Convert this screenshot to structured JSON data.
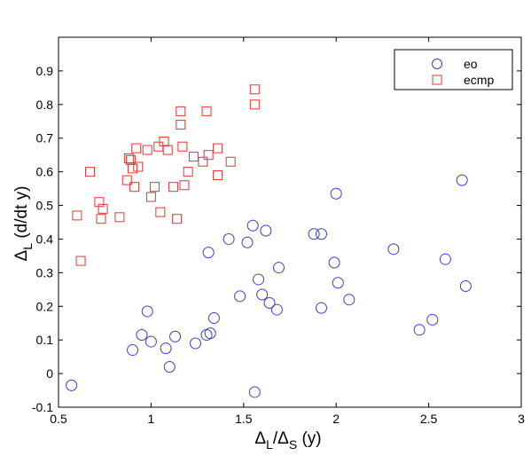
{
  "chart_data": {
    "type": "scatter",
    "title": "",
    "xlabel": {
      "main": "Δ",
      "sub1": "L",
      "mid": "/Δ",
      "sub2": "S",
      "unit": " (y)"
    },
    "ylabel": {
      "main": "Δ",
      "sub": "L",
      "unit": " (d/dt y)"
    },
    "xlim": [
      0.5,
      3
    ],
    "ylim": [
      -0.1,
      1.0
    ],
    "xticks": [
      0.5,
      1,
      1.5,
      2,
      2.5,
      3
    ],
    "xtick_labels": [
      "0.5",
      "1",
      "1.5",
      "2",
      "2.5",
      "3"
    ],
    "yticks": [
      -0.1,
      0,
      0.1,
      0.2,
      0.3,
      0.4,
      0.5,
      0.6,
      0.7,
      0.8,
      0.9
    ],
    "ytick_labels": [
      "-0.1",
      "0",
      "0.1",
      "0.2",
      "0.3",
      "0.4",
      "0.5",
      "0.6",
      "0.7",
      "0.8",
      "0.9"
    ],
    "grid": false,
    "legend_position": "top-right",
    "series": [
      {
        "name": "eo",
        "marker": "circle",
        "color": "#3b3bd8",
        "points": [
          [
            0.57,
            -0.035
          ],
          [
            0.9,
            0.07
          ],
          [
            0.95,
            0.115
          ],
          [
            0.98,
            0.185
          ],
          [
            1.0,
            0.095
          ],
          [
            1.08,
            0.075
          ],
          [
            1.1,
            0.02
          ],
          [
            1.13,
            0.11
          ],
          [
            1.24,
            0.09
          ],
          [
            1.3,
            0.115
          ],
          [
            1.32,
            0.12
          ],
          [
            1.31,
            0.36
          ],
          [
            1.34,
            0.165
          ],
          [
            1.42,
            0.4
          ],
          [
            1.48,
            0.23
          ],
          [
            1.52,
            0.39
          ],
          [
            1.55,
            0.44
          ],
          [
            1.56,
            -0.055
          ],
          [
            1.58,
            0.28
          ],
          [
            1.6,
            0.235
          ],
          [
            1.62,
            0.425
          ],
          [
            1.64,
            0.21
          ],
          [
            1.68,
            0.19
          ],
          [
            1.69,
            0.315
          ],
          [
            1.88,
            0.415
          ],
          [
            1.92,
            0.415
          ],
          [
            1.92,
            0.195
          ],
          [
            1.99,
            0.33
          ],
          [
            2.0,
            0.535
          ],
          [
            2.01,
            0.27
          ],
          [
            2.07,
            0.22
          ],
          [
            2.31,
            0.37
          ],
          [
            2.45,
            0.13
          ],
          [
            2.52,
            0.16
          ],
          [
            2.59,
            0.34
          ],
          [
            2.68,
            0.575
          ],
          [
            2.7,
            0.26
          ]
        ]
      },
      {
        "name": "ecmp",
        "marker": "square",
        "color": "#e83434",
        "points": [
          [
            0.6,
            0.47
          ],
          [
            0.62,
            0.335
          ],
          [
            0.67,
            0.6
          ],
          [
            0.72,
            0.51
          ],
          [
            0.73,
            0.46
          ],
          [
            0.74,
            0.49
          ],
          [
            0.83,
            0.465
          ],
          [
            0.87,
            0.575
          ],
          [
            0.88,
            0.64
          ],
          [
            0.89,
            0.635
          ],
          [
            0.9,
            0.61
          ],
          [
            0.91,
            0.555
          ],
          [
            0.92,
            0.67
          ],
          [
            0.93,
            0.615
          ],
          [
            0.98,
            0.665
          ],
          [
            1.0,
            0.525
          ],
          [
            1.02,
            0.555
          ],
          [
            1.04,
            0.675
          ],
          [
            1.05,
            0.48
          ],
          [
            1.07,
            0.69
          ],
          [
            1.09,
            0.665
          ],
          [
            1.12,
            0.555
          ],
          [
            1.14,
            0.46
          ],
          [
            1.16,
            0.74
          ],
          [
            1.16,
            0.78
          ],
          [
            1.17,
            0.675
          ],
          [
            1.18,
            0.56
          ],
          [
            1.2,
            0.6
          ],
          [
            1.23,
            0.645
          ],
          [
            1.28,
            0.63
          ],
          [
            1.3,
            0.78
          ],
          [
            1.31,
            0.65
          ],
          [
            1.36,
            0.67
          ],
          [
            1.36,
            0.59
          ],
          [
            1.43,
            0.63
          ],
          [
            1.56,
            0.845
          ],
          [
            1.56,
            0.8
          ]
        ]
      }
    ]
  }
}
